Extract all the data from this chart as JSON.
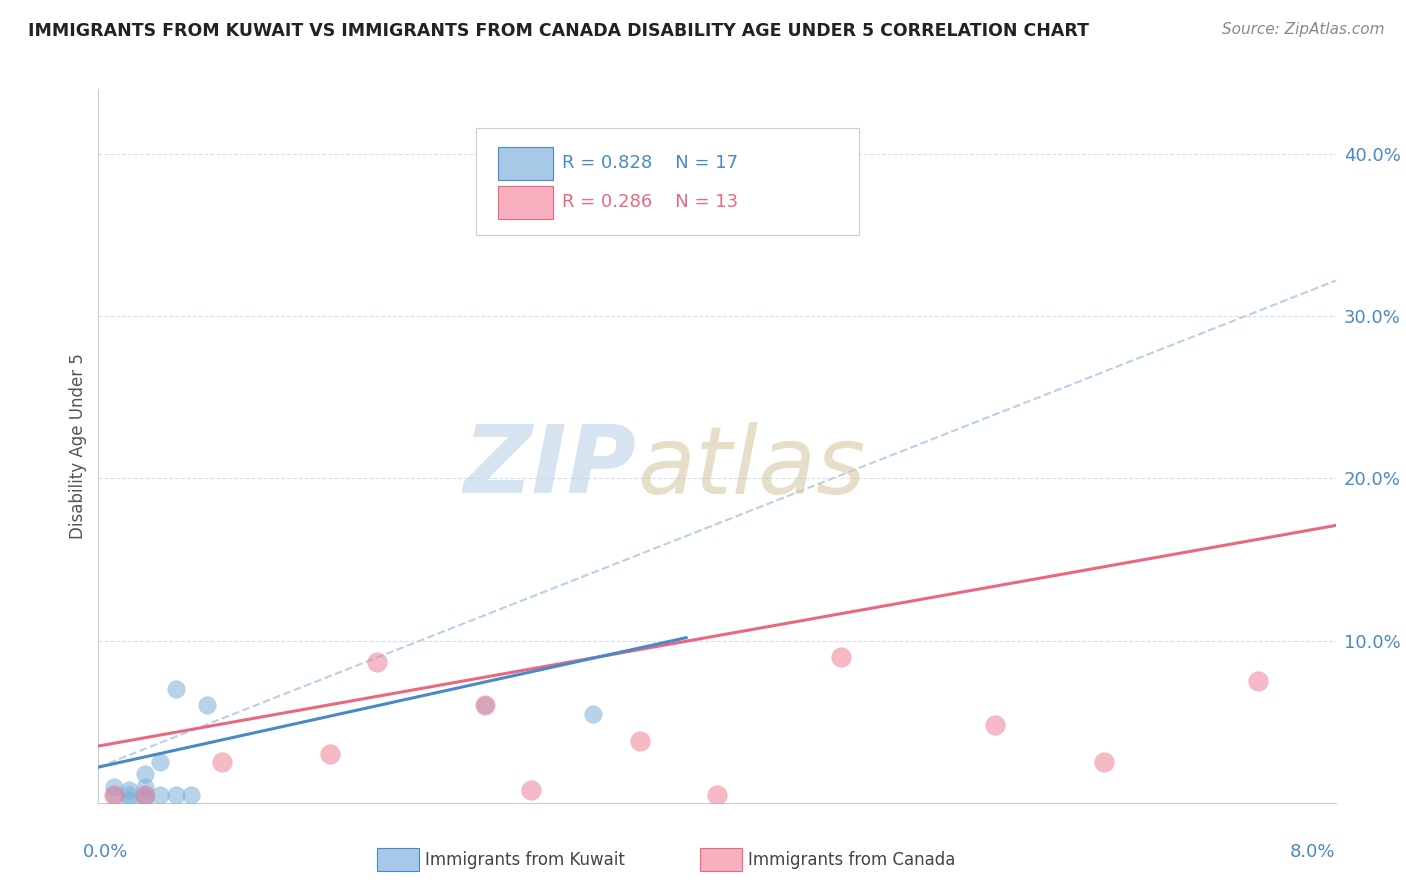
{
  "title": "IMMIGRANTS FROM KUWAIT VS IMMIGRANTS FROM CANADA DISABILITY AGE UNDER 5 CORRELATION CHART",
  "source": "Source: ZipAtlas.com",
  "ylabel": "Disability Age Under 5",
  "xlim": [
    0.0,
    0.08
  ],
  "ylim": [
    0.0,
    0.44
  ],
  "xtick_positions": [
    0.0,
    0.02,
    0.04,
    0.06,
    0.08
  ],
  "ytick_positions": [
    0.0,
    0.1,
    0.2,
    0.3,
    0.4
  ],
  "ytick_labels": [
    "",
    "10.0%",
    "20.0%",
    "30.0%",
    "40.0%"
  ],
  "xtick_labels": [
    "0.0%",
    "",
    "",
    "",
    "8.0%"
  ],
  "kuwait_x": [
    0.001,
    0.001,
    0.002,
    0.002,
    0.002,
    0.003,
    0.003,
    0.003,
    0.003,
    0.004,
    0.004,
    0.005,
    0.005,
    0.006,
    0.007,
    0.025,
    0.032
  ],
  "kuwait_y": [
    0.005,
    0.01,
    0.002,
    0.005,
    0.008,
    0.003,
    0.005,
    0.01,
    0.018,
    0.005,
    0.025,
    0.005,
    0.07,
    0.005,
    0.06,
    0.06,
    0.055
  ],
  "canada_x": [
    0.001,
    0.003,
    0.008,
    0.015,
    0.018,
    0.025,
    0.028,
    0.035,
    0.04,
    0.048,
    0.058,
    0.065,
    0.075
  ],
  "canada_y": [
    0.005,
    0.005,
    0.025,
    0.03,
    0.087,
    0.06,
    0.008,
    0.038,
    0.005,
    0.09,
    0.048,
    0.025,
    0.075
  ],
  "kuwait_scatter_color": "#7ab0d8",
  "kuwait_scatter_alpha": 0.55,
  "canada_scatter_color": "#f08098",
  "canada_scatter_alpha": 0.55,
  "kuwait_line_color": "#4a8ac4",
  "canada_line_color": "#e86880",
  "dashed_line_color": "#b8d0e8",
  "kuwait_line_m": 2.1,
  "kuwait_line_b": 0.022,
  "kuwait_line_end": 0.038,
  "canada_line_m": 1.7,
  "canada_line_b": 0.035,
  "dashed_line_m": 3.75,
  "dashed_line_b": 0.022,
  "grid_color": "#d8dde8",
  "spine_color": "#cccccc",
  "background_color": "#ffffff",
  "scatter_size_kuwait": 160,
  "scatter_size_canada": 200,
  "watermark_zip_color": "#c5d8ec",
  "watermark_atlas_color": "#d8c8a8",
  "legend_box_color": "#ffffff",
  "legend_edge_color": "#cccccc",
  "kuwait_patch_face": "#a8c8e8",
  "kuwait_patch_edge": "#4a8ac4",
  "canada_patch_face": "#f8b0c0",
  "canada_patch_edge": "#e86880",
  "text_color_blue": "#4a8ac4",
  "text_color_pink": "#e86880",
  "title_color": "#222222",
  "source_color": "#888888",
  "ylabel_color": "#555555"
}
